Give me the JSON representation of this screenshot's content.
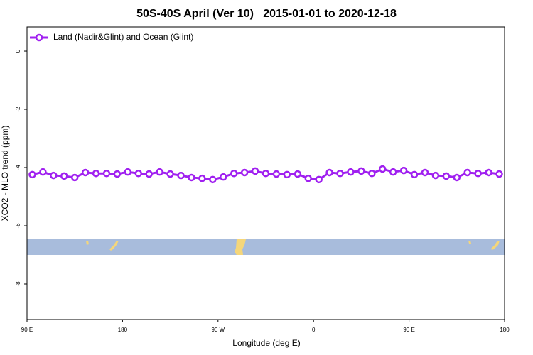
{
  "chart_data": {
    "type": "line",
    "title": "50S-40S April (Ver 10)   2015-01-01 to 2020-12-18",
    "x_label": "Longitude (deg E)",
    "y_label": "XCO2 - MLO trend (ppm)",
    "xlim": [
      90,
      540
    ],
    "ylim": [
      -9.22,
      0.83
    ],
    "xticks": [
      {
        "value": 90,
        "label": "90 E"
      },
      {
        "value": 180,
        "label": "180"
      },
      {
        "value": 270,
        "label": "90 W"
      },
      {
        "value": 360,
        "label": "0"
      },
      {
        "value": 450,
        "label": "90 E"
      },
      {
        "value": 540,
        "label": "180"
      }
    ],
    "yticks": [
      0,
      -2,
      -4,
      -6,
      -8
    ],
    "legend_position": "upper left",
    "x": [
      95,
      105,
      115,
      125,
      135,
      145,
      155,
      165,
      175,
      185,
      195,
      205,
      215,
      225,
      235,
      245,
      255,
      265,
      275,
      285,
      295,
      305,
      315,
      325,
      335,
      345,
      355,
      365,
      375,
      385,
      395,
      405,
      415,
      425,
      435,
      445,
      455,
      465,
      475,
      485,
      495,
      505,
      515,
      525,
      535
    ],
    "series": [
      {
        "name": "Land (Nadir&Glint) and Ocean (Glint)",
        "color": "#a020f0",
        "values": [
          -4.24,
          -4.15,
          -4.27,
          -4.29,
          -4.34,
          -4.17,
          -4.2,
          -4.2,
          -4.22,
          -4.15,
          -4.2,
          -4.22,
          -4.15,
          -4.22,
          -4.27,
          -4.34,
          -4.37,
          -4.41,
          -4.32,
          -4.2,
          -4.17,
          -4.12,
          -4.2,
          -4.22,
          -4.24,
          -4.22,
          -4.37,
          -4.41,
          -4.17,
          -4.2,
          -4.15,
          -4.12,
          -4.2,
          -4.05,
          -4.15,
          -4.1,
          -4.24,
          -4.17,
          -4.27,
          -4.29,
          -4.34,
          -4.17,
          -4.2,
          -4.17,
          -4.22
        ]
      }
    ]
  }
}
